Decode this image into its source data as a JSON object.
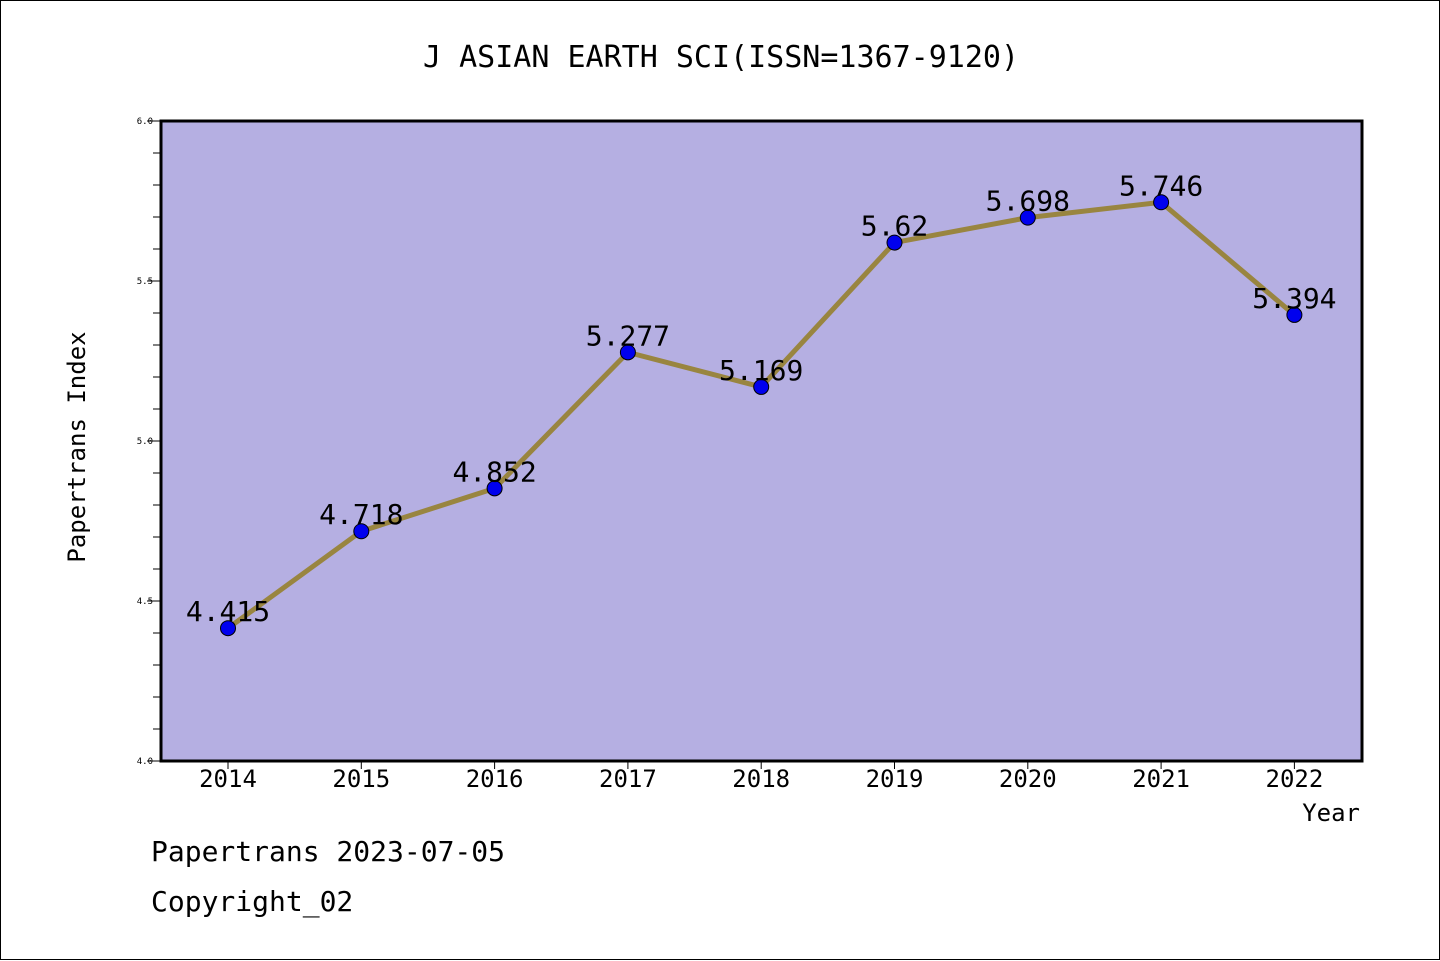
{
  "chart_data": {
    "type": "line",
    "title": "J ASIAN EARTH SCI(ISSN=1367-9120)",
    "xlabel": "Year",
    "ylabel": "Papertrans Index",
    "x": [
      "2014",
      "2015",
      "2016",
      "2017",
      "2018",
      "2019",
      "2020",
      "2021",
      "2022"
    ],
    "values": [
      4.415,
      4.718,
      4.852,
      5.277,
      5.169,
      5.62,
      5.698,
      5.746,
      5.394
    ],
    "data_labels": [
      "4.415",
      "4.718",
      "4.852",
      "5.277",
      "5.169",
      "5.62",
      "5.698",
      "5.746",
      "5.394"
    ],
    "ylim": [
      4.0,
      6.0
    ],
    "y_ticks": [
      "4.0",
      "4.5",
      "5.0",
      "5.5",
      "6.0"
    ],
    "grid": false,
    "legend": "none",
    "colors": {
      "plot_background": "#b5afe2",
      "line": "#998540",
      "marker": "#0000ee",
      "axes": "#000000"
    }
  },
  "footer": {
    "line1": "Papertrans 2023-07-05",
    "line2": "Copyright_02"
  }
}
